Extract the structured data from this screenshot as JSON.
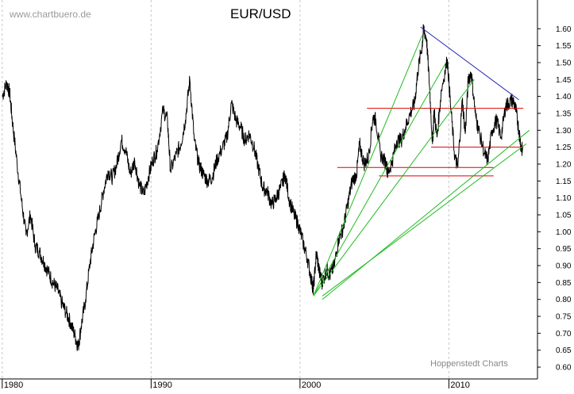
{
  "chart_data": {
    "type": "line",
    "title": "EUR/USD",
    "watermark": "www.chartbuero.de",
    "credit": "Hoppenstedt Charts",
    "xlabel": "",
    "ylabel": "",
    "xlim": [
      1979.85,
      2015.95
    ],
    "ylim": [
      0.565,
      1.685
    ],
    "y_ticks": [
      "0.60",
      "0.65",
      "0.70",
      "0.75",
      "0.80",
      "0.85",
      "0.90",
      "0.95",
      "1.00",
      "1.05",
      "1.10",
      "1.15",
      "1.20",
      "1.25",
      "1.30",
      "1.35",
      "1.40",
      "1.45",
      "1.50",
      "1.55",
      "1.60"
    ],
    "x_ticks": [
      {
        "label": "1980",
        "value": 1980
      },
      {
        "label": "1990",
        "value": 1990
      },
      {
        "label": "2000",
        "value": 2000
      },
      {
        "label": "2010",
        "value": 2010
      }
    ],
    "grid": "vertical dashed at decades",
    "colors": {
      "price": "#000000",
      "support": "#dd0000",
      "trend_down": "#2222bb",
      "fan": "#22bb22",
      "grid": "#c8c8c8"
    },
    "series": [
      {
        "values": [
          [
            1980.0,
            1.4
          ],
          [
            1980.3,
            1.44
          ],
          [
            1980.5,
            1.41
          ],
          [
            1980.7,
            1.32
          ],
          [
            1981.0,
            1.2
          ],
          [
            1981.3,
            1.09
          ],
          [
            1981.6,
            0.99
          ],
          [
            1981.9,
            1.05
          ],
          [
            1982.2,
            0.96
          ],
          [
            1982.5,
            0.94
          ],
          [
            1982.8,
            0.91
          ],
          [
            1983.1,
            0.88
          ],
          [
            1983.4,
            0.85
          ],
          [
            1983.7,
            0.83
          ],
          [
            1984.0,
            0.79
          ],
          [
            1984.3,
            0.76
          ],
          [
            1984.6,
            0.73
          ],
          [
            1984.9,
            0.69
          ],
          [
            1985.1,
            0.66
          ],
          [
            1985.3,
            0.72
          ],
          [
            1985.6,
            0.8
          ],
          [
            1985.9,
            0.91
          ],
          [
            1986.2,
            0.99
          ],
          [
            1986.5,
            1.05
          ],
          [
            1986.8,
            1.12
          ],
          [
            1987.1,
            1.18
          ],
          [
            1987.4,
            1.16
          ],
          [
            1987.7,
            1.2
          ],
          [
            1988.0,
            1.27
          ],
          [
            1988.3,
            1.24
          ],
          [
            1988.6,
            1.17
          ],
          [
            1988.9,
            1.21
          ],
          [
            1989.2,
            1.14
          ],
          [
            1989.5,
            1.11
          ],
          [
            1989.8,
            1.16
          ],
          [
            1990.1,
            1.21
          ],
          [
            1990.4,
            1.24
          ],
          [
            1990.8,
            1.36
          ],
          [
            1991.1,
            1.33
          ],
          [
            1991.3,
            1.18
          ],
          [
            1991.7,
            1.23
          ],
          [
            1992.0,
            1.26
          ],
          [
            1992.3,
            1.33
          ],
          [
            1992.6,
            1.45
          ],
          [
            1992.9,
            1.27
          ],
          [
            1993.2,
            1.2
          ],
          [
            1993.5,
            1.17
          ],
          [
            1993.8,
            1.15
          ],
          [
            1994.1,
            1.16
          ],
          [
            1994.4,
            1.21
          ],
          [
            1994.8,
            1.25
          ],
          [
            1995.1,
            1.28
          ],
          [
            1995.4,
            1.38
          ],
          [
            1995.7,
            1.33
          ],
          [
            1996.0,
            1.31
          ],
          [
            1996.3,
            1.27
          ],
          [
            1996.6,
            1.29
          ],
          [
            1996.9,
            1.25
          ],
          [
            1997.2,
            1.19
          ],
          [
            1997.5,
            1.13
          ],
          [
            1997.8,
            1.12
          ],
          [
            1998.1,
            1.08
          ],
          [
            1998.4,
            1.1
          ],
          [
            1998.7,
            1.13
          ],
          [
            1999.0,
            1.17
          ],
          [
            1999.3,
            1.09
          ],
          [
            1999.6,
            1.05
          ],
          [
            1999.9,
            1.02
          ],
          [
            2000.2,
            0.97
          ],
          [
            2000.5,
            0.92
          ],
          [
            2000.8,
            0.85
          ],
          [
            2000.9,
            0.83
          ],
          [
            2001.1,
            0.94
          ],
          [
            2001.3,
            0.88
          ],
          [
            2001.5,
            0.85
          ],
          [
            2001.8,
            0.89
          ],
          [
            2002.0,
            0.87
          ],
          [
            2002.3,
            0.9
          ],
          [
            2002.6,
            0.98
          ],
          [
            2002.9,
            1.01
          ],
          [
            2003.2,
            1.08
          ],
          [
            2003.5,
            1.15
          ],
          [
            2003.8,
            1.17
          ],
          [
            2004.0,
            1.26
          ],
          [
            2004.3,
            1.2
          ],
          [
            2004.6,
            1.22
          ],
          [
            2004.9,
            1.34
          ],
          [
            2005.1,
            1.33
          ],
          [
            2005.4,
            1.23
          ],
          [
            2005.8,
            1.2
          ],
          [
            2005.9,
            1.17
          ],
          [
            2006.2,
            1.21
          ],
          [
            2006.5,
            1.27
          ],
          [
            2006.8,
            1.27
          ],
          [
            2007.1,
            1.31
          ],
          [
            2007.4,
            1.35
          ],
          [
            2007.7,
            1.38
          ],
          [
            2007.9,
            1.47
          ],
          [
            2008.2,
            1.55
          ],
          [
            2008.3,
            1.6
          ],
          [
            2008.5,
            1.57
          ],
          [
            2008.7,
            1.43
          ],
          [
            2008.9,
            1.26
          ],
          [
            2009.0,
            1.36
          ],
          [
            2009.2,
            1.28
          ],
          [
            2009.5,
            1.42
          ],
          [
            2009.9,
            1.51
          ],
          [
            2010.1,
            1.38
          ],
          [
            2010.4,
            1.22
          ],
          [
            2010.6,
            1.19
          ],
          [
            2010.9,
            1.39
          ],
          [
            2011.1,
            1.29
          ],
          [
            2011.3,
            1.45
          ],
          [
            2011.5,
            1.47
          ],
          [
            2011.8,
            1.34
          ],
          [
            2012.0,
            1.3
          ],
          [
            2012.4,
            1.23
          ],
          [
            2012.6,
            1.21
          ],
          [
            2012.9,
            1.3
          ],
          [
            2013.2,
            1.33
          ],
          [
            2013.5,
            1.28
          ],
          [
            2013.8,
            1.37
          ],
          [
            2014.0,
            1.38
          ],
          [
            2014.3,
            1.39
          ],
          [
            2014.5,
            1.36
          ],
          [
            2014.7,
            1.3
          ],
          [
            2014.85,
            1.25
          ],
          [
            2014.95,
            1.24
          ]
        ]
      }
    ],
    "annotations": {
      "support_lines": [
        {
          "y": 1.365,
          "x1": 2004.5,
          "x2": 2015.0
        },
        {
          "y": 1.25,
          "x1": 2008.8,
          "x2": 2015.0
        },
        {
          "y": 1.19,
          "x1": 2002.5,
          "x2": 2013.0
        },
        {
          "y": 1.165,
          "x1": 2005.3,
          "x2": 2013.0
        }
      ],
      "trend_down": {
        "from": [
          2008.1,
          1.605
        ],
        "to": [
          2014.7,
          1.39
        ]
      },
      "fan_lines": [
        {
          "from": [
            2000.9,
            0.81
          ],
          "to": [
            2008.2,
            1.58
          ]
        },
        {
          "from": [
            2000.9,
            0.81
          ],
          "to": [
            2009.8,
            1.5
          ]
        },
        {
          "from": [
            2000.9,
            0.81
          ],
          "to": [
            2011.7,
            1.45
          ]
        },
        {
          "from": [
            2001.5,
            0.8
          ],
          "to": [
            2015.4,
            1.3
          ]
        },
        {
          "from": [
            2001.5,
            0.81
          ],
          "to": [
            2015.2,
            1.26
          ]
        }
      ]
    }
  }
}
